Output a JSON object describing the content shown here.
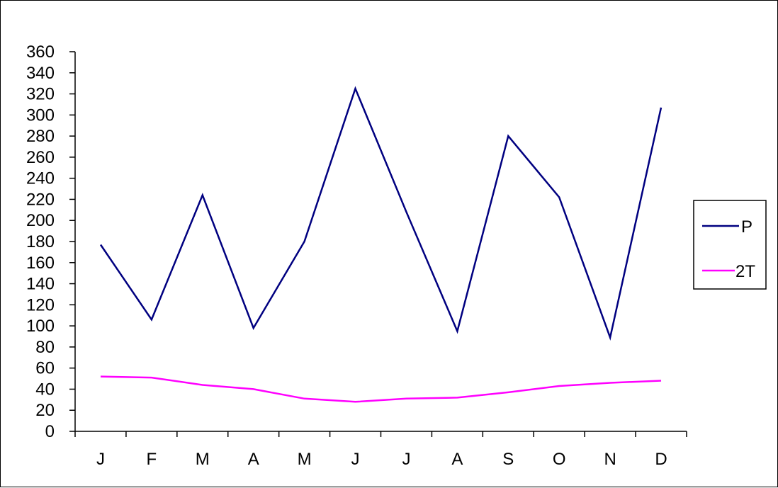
{
  "chart_data": {
    "type": "line",
    "title": "",
    "xlabel": "",
    "ylabel": "",
    "categories": [
      "J",
      "F",
      "M",
      "A",
      "M",
      "J",
      "J",
      "A",
      "S",
      "O",
      "N",
      "D"
    ],
    "ylim": [
      0,
      360
    ],
    "ytick_step": 20,
    "grid": false,
    "legend_position": "right",
    "series": [
      {
        "name": "P",
        "color": "#000080",
        "values": [
          177,
          106,
          224,
          98,
          180,
          325,
          208,
          95,
          280,
          222,
          89,
          307
        ]
      },
      {
        "name": "2T",
        "color": "#ff00ff",
        "values": [
          52,
          51,
          44,
          40,
          31,
          28,
          31,
          32,
          37,
          43,
          46,
          48
        ]
      }
    ]
  }
}
